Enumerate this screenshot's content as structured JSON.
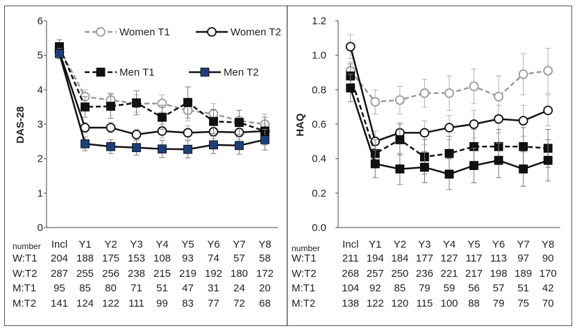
{
  "chart_data": [
    {
      "type": "line",
      "ylabel": "DAS-28",
      "ylim": [
        0,
        6
      ],
      "yticks": [
        0,
        1,
        2,
        3,
        4,
        5,
        6
      ],
      "ytick_labels": [
        "0",
        "1",
        "2",
        "3",
        "4",
        "5",
        "6"
      ],
      "categories": [
        "Incl",
        "Y1",
        "Y2",
        "Y3",
        "Y4",
        "Y5",
        "Y6",
        "Y7",
        "Y8"
      ],
      "legend": [
        "Women T1",
        "Women T2",
        "Men T1",
        "Men T2"
      ],
      "series": [
        {
          "name": "Women T1",
          "style": "dashed",
          "marker": "circle-open",
          "color": "#999999",
          "values": [
            5.2,
            3.8,
            3.7,
            3.6,
            3.6,
            3.4,
            3.3,
            3.1,
            3.0
          ],
          "err": [
            0.15,
            0.2,
            0.2,
            0.25,
            0.25,
            0.3,
            0.3,
            0.3,
            0.3
          ]
        },
        {
          "name": "Women T2",
          "style": "solid",
          "marker": "circle-open",
          "color": "#111111",
          "values": [
            5.1,
            2.9,
            2.9,
            2.7,
            2.8,
            2.75,
            2.78,
            2.76,
            2.8
          ],
          "err": [
            0.15,
            0.15,
            0.15,
            0.15,
            0.2,
            0.2,
            0.2,
            0.2,
            0.2
          ]
        },
        {
          "name": "Men T1",
          "style": "dashed",
          "marker": "square",
          "color": "#111111",
          "values": [
            5.25,
            3.5,
            3.52,
            3.62,
            3.2,
            3.63,
            3.08,
            3.05,
            2.8
          ],
          "err": [
            0.2,
            0.3,
            0.35,
            0.35,
            0.35,
            0.45,
            0.35,
            0.35,
            0.4
          ]
        },
        {
          "name": "Men T2",
          "style": "solid",
          "marker": "square",
          "color": "#1f3f7a",
          "values": [
            5.05,
            2.43,
            2.35,
            2.32,
            2.28,
            2.27,
            2.4,
            2.38,
            2.55
          ],
          "err": [
            0.15,
            0.2,
            0.2,
            0.22,
            0.25,
            0.25,
            0.25,
            0.25,
            0.3
          ]
        }
      ],
      "table_header": "number",
      "table": [
        {
          "label": "W:T1",
          "values": [
            "204",
            "188",
            "175",
            "153",
            "108",
            "93",
            "74",
            "57",
            "58"
          ]
        },
        {
          "label": "W:T2",
          "values": [
            "287",
            "255",
            "256",
            "238",
            "215",
            "219",
            "192",
            "180",
            "172"
          ]
        },
        {
          "label": "M:T1",
          "values": [
            "95",
            "85",
            "80",
            "71",
            "51",
            "47",
            "31",
            "24",
            "20"
          ]
        },
        {
          "label": "M:T2",
          "values": [
            "141",
            "124",
            "122",
            "111",
            "99",
            "83",
            "77",
            "72",
            "68"
          ]
        }
      ]
    },
    {
      "type": "line",
      "ylabel": "HAQ",
      "ylim": [
        0,
        1.2
      ],
      "yticks": [
        0,
        0.2,
        0.4,
        0.6,
        0.8,
        1.0,
        1.2
      ],
      "ytick_labels": [
        "0.0",
        "0.2",
        "0.4",
        "0.6",
        "0.8",
        "1.0",
        "1.2"
      ],
      "categories": [
        "Incl",
        "Y1",
        "Y2",
        "Y3",
        "Y4",
        "Y5",
        "Y6",
        "Y7",
        "Y8"
      ],
      "series": [
        {
          "name": "Women T1",
          "style": "dashed",
          "marker": "circle-open",
          "color": "#999999",
          "values": [
            0.91,
            0.73,
            0.74,
            0.78,
            0.78,
            0.82,
            0.76,
            0.89,
            0.91
          ],
          "err": [
            0.05,
            0.07,
            0.08,
            0.08,
            0.1,
            0.1,
            0.12,
            0.12,
            0.13
          ]
        },
        {
          "name": "Women T2",
          "style": "solid",
          "marker": "circle-open",
          "color": "#111111",
          "values": [
            1.05,
            0.5,
            0.55,
            0.55,
            0.58,
            0.6,
            0.63,
            0.62,
            0.68
          ],
          "err": [
            0.07,
            0.06,
            0.06,
            0.07,
            0.07,
            0.08,
            0.08,
            0.09,
            0.09
          ]
        },
        {
          "name": "Men T1",
          "style": "dashed",
          "marker": "square",
          "color": "#111111",
          "values": [
            0.88,
            0.43,
            0.51,
            0.41,
            0.43,
            0.47,
            0.47,
            0.47,
            0.46
          ],
          "err": [
            0.07,
            0.08,
            0.09,
            0.1,
            0.1,
            0.1,
            0.1,
            0.11,
            0.11
          ]
        },
        {
          "name": "Men T2",
          "style": "solid",
          "marker": "square",
          "color": "#111111",
          "values": [
            0.81,
            0.37,
            0.34,
            0.35,
            0.31,
            0.36,
            0.39,
            0.34,
            0.39
          ],
          "err": [
            0.08,
            0.08,
            0.09,
            0.09,
            0.09,
            0.1,
            0.1,
            0.1,
            0.12
          ]
        }
      ],
      "table_header": "number",
      "table": [
        {
          "label": "W:T1",
          "values": [
            "211",
            "194",
            "184",
            "177",
            "127",
            "117",
            "113",
            "97",
            "90"
          ]
        },
        {
          "label": "W:T2",
          "values": [
            "268",
            "257",
            "250",
            "236",
            "221",
            "217",
            "198",
            "189",
            "170"
          ]
        },
        {
          "label": "M:T1",
          "values": [
            "104",
            "92",
            "85",
            "79",
            "59",
            "56",
            "57",
            "51",
            "42"
          ]
        },
        {
          "label": "M:T2",
          "values": [
            "138",
            "122",
            "120",
            "115",
            "100",
            "88",
            "79",
            "75",
            "70"
          ]
        }
      ]
    }
  ]
}
